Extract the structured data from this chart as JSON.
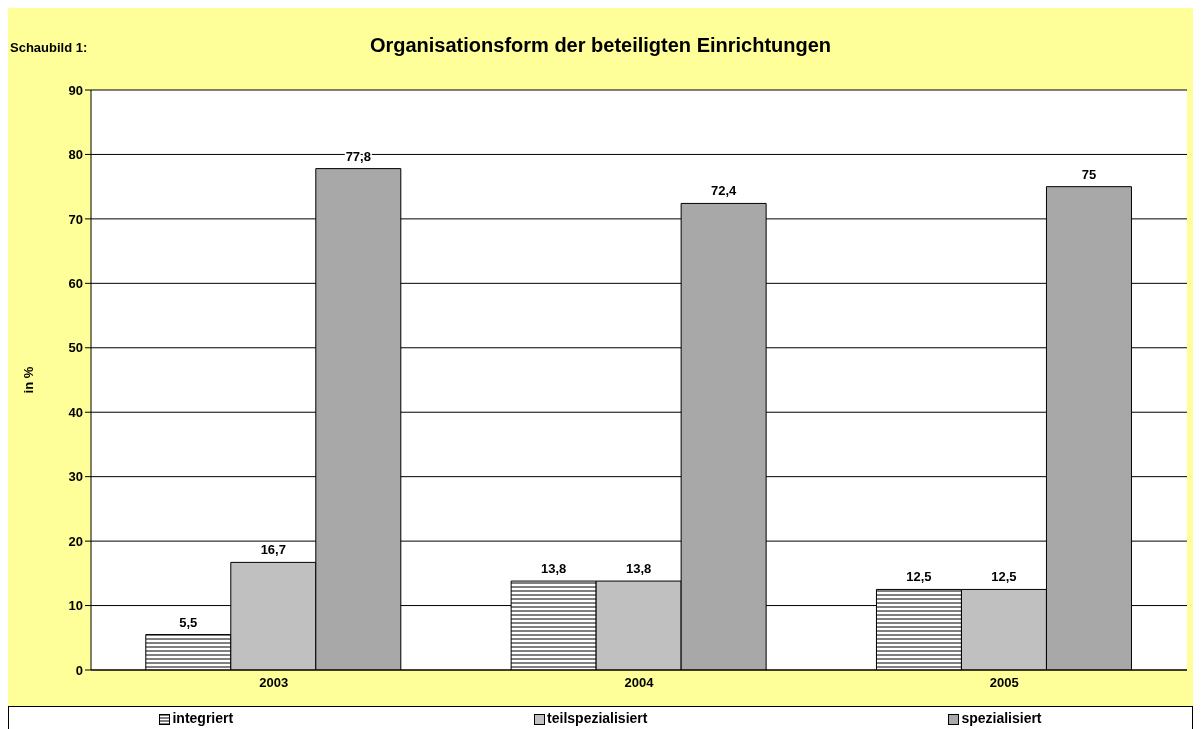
{
  "chart_data": {
    "type": "bar",
    "title": "Organisationsform der beteiligten Einrichtungen",
    "annotations": [
      "Schaubild 1:"
    ],
    "ylabel": "in %",
    "categories": [
      "2003",
      "2004",
      "2005"
    ],
    "series": [
      {
        "name": "integriert",
        "color": "#000000",
        "values": [
          5.5,
          13.8,
          12.5
        ],
        "value_labels": [
          "5,5",
          "13,8",
          "12,5"
        ]
      },
      {
        "name": "teilspezialisiert",
        "color": "#c0c0c0",
        "values": [
          16.7,
          13.8,
          12.5
        ],
        "value_labels": [
          "16,7",
          "13,8",
          "12,5"
        ]
      },
      {
        "name": "spezialisiert",
        "color": "#a8a8a8",
        "values": [
          77.8,
          72.4,
          75
        ],
        "value_labels": [
          "77,8",
          "72,4",
          "75"
        ]
      }
    ],
    "ylim": [
      0,
      90
    ],
    "yticks": [
      0,
      10,
      20,
      30,
      40,
      50,
      60,
      70,
      80,
      90
    ],
    "grid": "y",
    "legend": "bottom"
  }
}
